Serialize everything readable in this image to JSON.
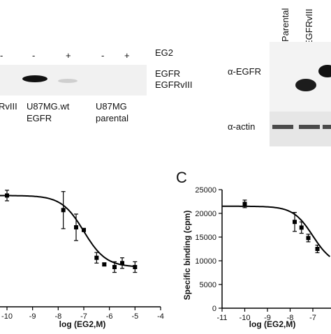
{
  "panel_a": {
    "lane_signs": [
      "-",
      "-",
      "+",
      "-",
      "+"
    ],
    "treatment_label": "EG2",
    "band_labels": [
      "EGFR",
      "EGFRvIII"
    ],
    "cell_line_labels": {
      "cut_left": "RvIII",
      "wt_line1": "U87MG.wt",
      "wt_line2": "EGFR",
      "parental_line1": "U87MG",
      "parental_line2": "parental"
    }
  },
  "panel_b_blot": {
    "lane_labels": [
      "Parental",
      "EGFRvIII"
    ],
    "row_labels": [
      "α-EGFR",
      "α-actin"
    ]
  },
  "panel_c": {
    "letter": "C",
    "ylabel": "Specific binding (cpm)",
    "y_ticks": [
      "0",
      "5000",
      "10000",
      "15000",
      "20000",
      "25000"
    ],
    "x_ticks": [
      "-11",
      "-10",
      "-9",
      "-8",
      "-7"
    ]
  },
  "chart_data": [
    {
      "type": "scatter",
      "title": "",
      "xlabel": "log (EG2,M)",
      "ylabel": "",
      "x_ticks": [
        "-10",
        "-9",
        "-8",
        "-7",
        "-6",
        "-5",
        "-4"
      ],
      "xlim": [
        -10,
        -4
      ],
      "ylim": [
        0,
        1
      ],
      "y_ticks_visible": false,
      "points": [
        {
          "x": -10.0,
          "y": 0.84,
          "err": 0.04
        },
        {
          "x": -7.8,
          "y": 0.73,
          "err": 0.14
        },
        {
          "x": -7.3,
          "y": 0.6,
          "err": 0.1
        },
        {
          "x": -7.0,
          "y": 0.58,
          "err": 0.01
        },
        {
          "x": -6.5,
          "y": 0.37,
          "err": 0.04
        },
        {
          "x": -6.2,
          "y": 0.32,
          "err": 0.01
        },
        {
          "x": -5.8,
          "y": 0.3,
          "err": 0.04
        },
        {
          "x": -5.5,
          "y": 0.33,
          "err": 0.04
        },
        {
          "x": -5.0,
          "y": 0.3,
          "err": 0.04
        }
      ],
      "fit": {
        "top": 0.84,
        "bottom": 0.3,
        "logEC50": -7.0,
        "slope": 1.0
      },
      "ribbon": "top-tall-curve-left-cropped"
    },
    {
      "type": "scatter",
      "title": "",
      "xlabel": "log (EG2,M)",
      "ylabel": "Specific binding (cpm)",
      "xlim": [
        -11,
        -6.2
      ],
      "ylim": [
        0,
        25000
      ],
      "points": [
        {
          "x": -10.0,
          "y": 22000,
          "err": 800
        },
        {
          "x": -7.8,
          "y": 18200,
          "err": 2000
        },
        {
          "x": -7.5,
          "y": 17000,
          "err": 1200
        },
        {
          "x": -7.2,
          "y": 14800,
          "err": 800
        },
        {
          "x": -6.8,
          "y": 12500,
          "err": 800
        }
      ],
      "fit": {
        "top": 21500,
        "bottom": 9000,
        "logEC50": -7.0,
        "slope": 1.0
      }
    }
  ]
}
